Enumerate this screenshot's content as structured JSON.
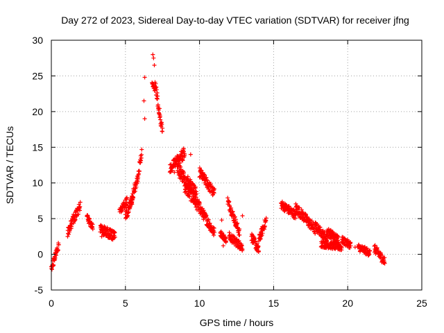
{
  "chart_data": {
    "type": "scatter",
    "title": "Day 272 of 2023, Sidereal Day-to-day VTEC variation (SDTVAR) for receiver jfng",
    "xlabel": "GPS time / hours",
    "ylabel": "SDTVAR / TECUs",
    "xlim": [
      0,
      25
    ],
    "ylim": [
      -5,
      30
    ],
    "xticks": [
      0,
      5,
      10,
      15,
      20,
      25
    ],
    "yticks": [
      -5,
      0,
      5,
      10,
      15,
      20,
      25,
      30
    ],
    "grid": true,
    "marker": "plus",
    "color": "#ff0000",
    "segments": [
      {
        "x0": 0.0,
        "x1": 0.5,
        "y0": -2.0,
        "y1": 1.3,
        "spread": 0.5
      },
      {
        "x0": 1.1,
        "x1": 1.5,
        "y0": 3.0,
        "y1": 5.0,
        "spread": 0.6
      },
      {
        "x0": 1.5,
        "x1": 1.95,
        "y0": 4.8,
        "y1": 6.8,
        "spread": 0.6
      },
      {
        "x0": 2.4,
        "x1": 2.8,
        "y0": 5.2,
        "y1": 3.8,
        "spread": 0.5
      },
      {
        "x0": 3.3,
        "x1": 4.3,
        "y0": 3.5,
        "y1": 2.6,
        "spread": 0.7
      },
      {
        "x0": 4.6,
        "x1": 5.1,
        "y0": 6.0,
        "y1": 7.5,
        "spread": 0.6
      },
      {
        "x0": 5.0,
        "x1": 5.5,
        "y0": 5.2,
        "y1": 8.0,
        "spread": 0.7
      },
      {
        "x0": 5.4,
        "x1": 5.8,
        "y0": 7.5,
        "y1": 10.5,
        "spread": 0.7
      },
      {
        "x0": 5.8,
        "x1": 6.1,
        "y0": 10.5,
        "y1": 14.2,
        "spread": 0.7
      },
      {
        "x0": 6.8,
        "x1": 7.0,
        "y0": 24.0,
        "y1": 23.2,
        "spread": 0.4
      },
      {
        "x0": 7.0,
        "x1": 7.5,
        "y0": 24.0,
        "y1": 17.0,
        "spread": 0.7
      },
      {
        "x0": 8.0,
        "x1": 9.0,
        "y0": 12.0,
        "y1": 14.2,
        "spread": 0.8
      },
      {
        "x0": 8.5,
        "x1": 9.8,
        "y0": 12.0,
        "y1": 8.5,
        "spread": 0.9
      },
      {
        "x0": 9.0,
        "x1": 10.0,
        "y0": 9.5,
        "y1": 6.5,
        "spread": 0.8
      },
      {
        "x0": 10.0,
        "x1": 11.0,
        "y0": 11.5,
        "y1": 8.5,
        "spread": 0.7
      },
      {
        "x0": 10.0,
        "x1": 11.0,
        "y0": 6.5,
        "y1": 3.0,
        "spread": 0.7
      },
      {
        "x0": 11.4,
        "x1": 11.8,
        "y0": 3.0,
        "y1": 2.0,
        "spread": 0.4
      },
      {
        "x0": 11.9,
        "x1": 12.7,
        "y0": 7.5,
        "y1": 3.0,
        "spread": 0.6
      },
      {
        "x0": 12.0,
        "x1": 12.9,
        "y0": 2.5,
        "y1": 1.0,
        "spread": 0.6
      },
      {
        "x0": 13.5,
        "x1": 14.0,
        "y0": 2.5,
        "y1": 0.5,
        "spread": 0.6
      },
      {
        "x0": 14.0,
        "x1": 14.5,
        "y0": 2.0,
        "y1": 4.8,
        "spread": 0.6
      },
      {
        "x0": 15.5,
        "x1": 16.5,
        "y0": 7.0,
        "y1": 5.5,
        "spread": 0.6
      },
      {
        "x0": 16.5,
        "x1": 17.8,
        "y0": 6.5,
        "y1": 3.5,
        "spread": 0.7
      },
      {
        "x0": 17.8,
        "x1": 18.6,
        "y0": 4.0,
        "y1": 2.2,
        "spread": 0.6
      },
      {
        "x0": 18.6,
        "x1": 19.4,
        "y0": 3.2,
        "y1": 2.0,
        "spread": 0.6
      },
      {
        "x0": 18.2,
        "x1": 19.6,
        "y0": 1.5,
        "y1": 1.0,
        "spread": 0.5
      },
      {
        "x0": 19.6,
        "x1": 20.2,
        "y0": 2.0,
        "y1": 1.3,
        "spread": 0.5
      },
      {
        "x0": 20.7,
        "x1": 21.5,
        "y0": 1.0,
        "y1": 0.2,
        "spread": 0.5
      },
      {
        "x0": 21.8,
        "x1": 22.5,
        "y0": 0.8,
        "y1": -1.0,
        "spread": 0.6
      }
    ],
    "points": [
      {
        "x": 6.3,
        "y": 24.8
      },
      {
        "x": 6.25,
        "y": 21.5
      },
      {
        "x": 6.3,
        "y": 19.0
      },
      {
        "x": 6.85,
        "y": 28.0
      },
      {
        "x": 6.9,
        "y": 27.5
      },
      {
        "x": 6.95,
        "y": 26.5
      },
      {
        "x": 3.4,
        "y": 2.5
      },
      {
        "x": 11.5,
        "y": 4.8
      },
      {
        "x": 11.6,
        "y": 1.2
      },
      {
        "x": 12.9,
        "y": 5.4
      },
      {
        "x": 8.3,
        "y": 11.5
      },
      {
        "x": 9.4,
        "y": 14.0
      },
      {
        "x": 19.1,
        "y": 1.9
      },
      {
        "x": 20.5,
        "y": 1.0
      }
    ]
  }
}
